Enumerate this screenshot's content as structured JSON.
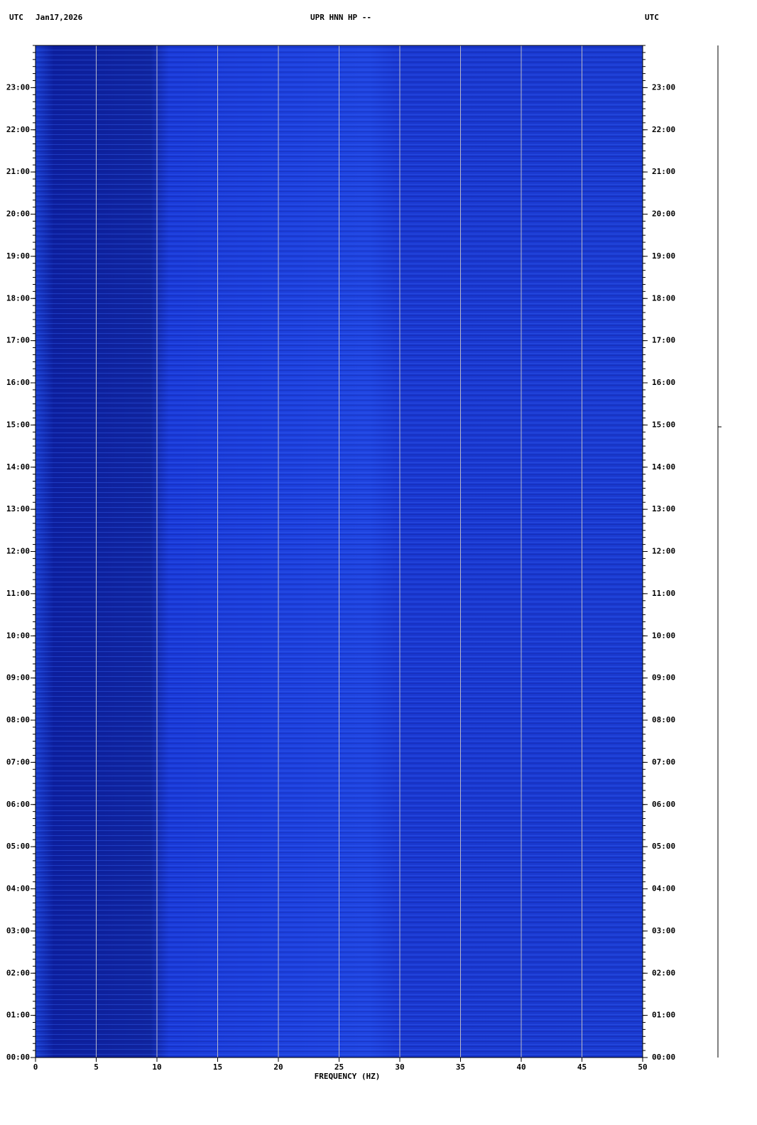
{
  "chart_data": {
    "type": "spectrogram",
    "title": "UPR HNN HP --",
    "time_zone": "UTC",
    "date": "Jan17,2026",
    "x_label": "FREQUENCY (HZ)",
    "xlim": [
      0,
      50
    ],
    "xticks": [
      0,
      5,
      10,
      15,
      20,
      25,
      30,
      35,
      40,
      45,
      50
    ],
    "ylim": [
      0,
      24
    ],
    "yticks": [
      {
        "value": 0,
        "label": "00:00"
      },
      {
        "value": 1,
        "label": "01:00"
      },
      {
        "value": 2,
        "label": "02:00"
      },
      {
        "value": 3,
        "label": "03:00"
      },
      {
        "value": 4,
        "label": "04:00"
      },
      {
        "value": 5,
        "label": "05:00"
      },
      {
        "value": 6,
        "label": "06:00"
      },
      {
        "value": 7,
        "label": "07:00"
      },
      {
        "value": 8,
        "label": "08:00"
      },
      {
        "value": 9,
        "label": "09:00"
      },
      {
        "value": 10,
        "label": "10:00"
      },
      {
        "value": 11,
        "label": "11:00"
      },
      {
        "value": 12,
        "label": "12:00"
      },
      {
        "value": 13,
        "label": "13:00"
      },
      {
        "value": 14,
        "label": "14:00"
      },
      {
        "value": 15,
        "label": "15:00"
      },
      {
        "value": 16,
        "label": "16:00"
      },
      {
        "value": 17,
        "label": "17:00"
      },
      {
        "value": 18,
        "label": "18:00"
      },
      {
        "value": 19,
        "label": "19:00"
      },
      {
        "value": 20,
        "label": "20:00"
      },
      {
        "value": 21,
        "label": "21:00"
      },
      {
        "value": 22,
        "label": "22:00"
      },
      {
        "value": 23,
        "label": "23:00"
      }
    ],
    "grid": true
  }
}
